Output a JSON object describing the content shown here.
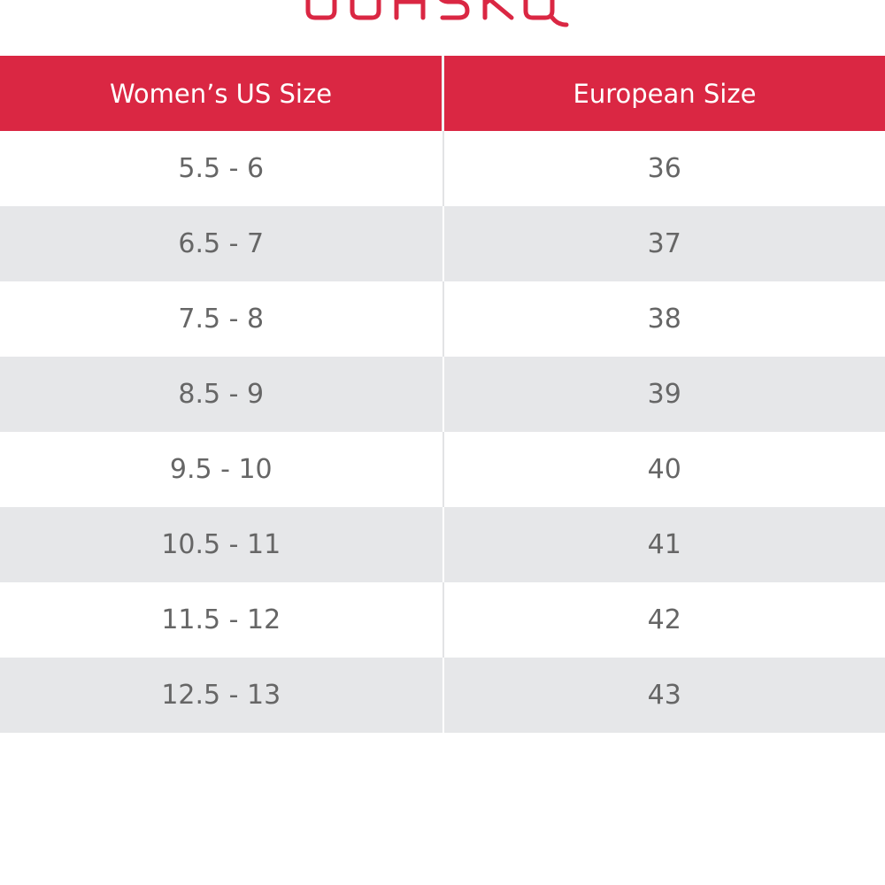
{
  "brand": {
    "logo_icon": "brand-wordmark-logo",
    "accent_color": "#da2743"
  },
  "table": {
    "headers": [
      "Women’s US Size",
      "European Size"
    ],
    "rows": [
      {
        "us": "5.5 - 6",
        "eu": "36"
      },
      {
        "us": "6.5 - 7",
        "eu": "37"
      },
      {
        "us": "7.5 - 8",
        "eu": "38"
      },
      {
        "us": "8.5 - 9",
        "eu": "39"
      },
      {
        "us": "9.5 - 10",
        "eu": "40"
      },
      {
        "us": "10.5 - 11",
        "eu": "41"
      },
      {
        "us": "11.5 - 12",
        "eu": "42"
      },
      {
        "us": "12.5 - 13",
        "eu": "43"
      }
    ],
    "header_color": "#da2743",
    "stripe_color": "#e6e7e9",
    "text_color": "#666666"
  }
}
